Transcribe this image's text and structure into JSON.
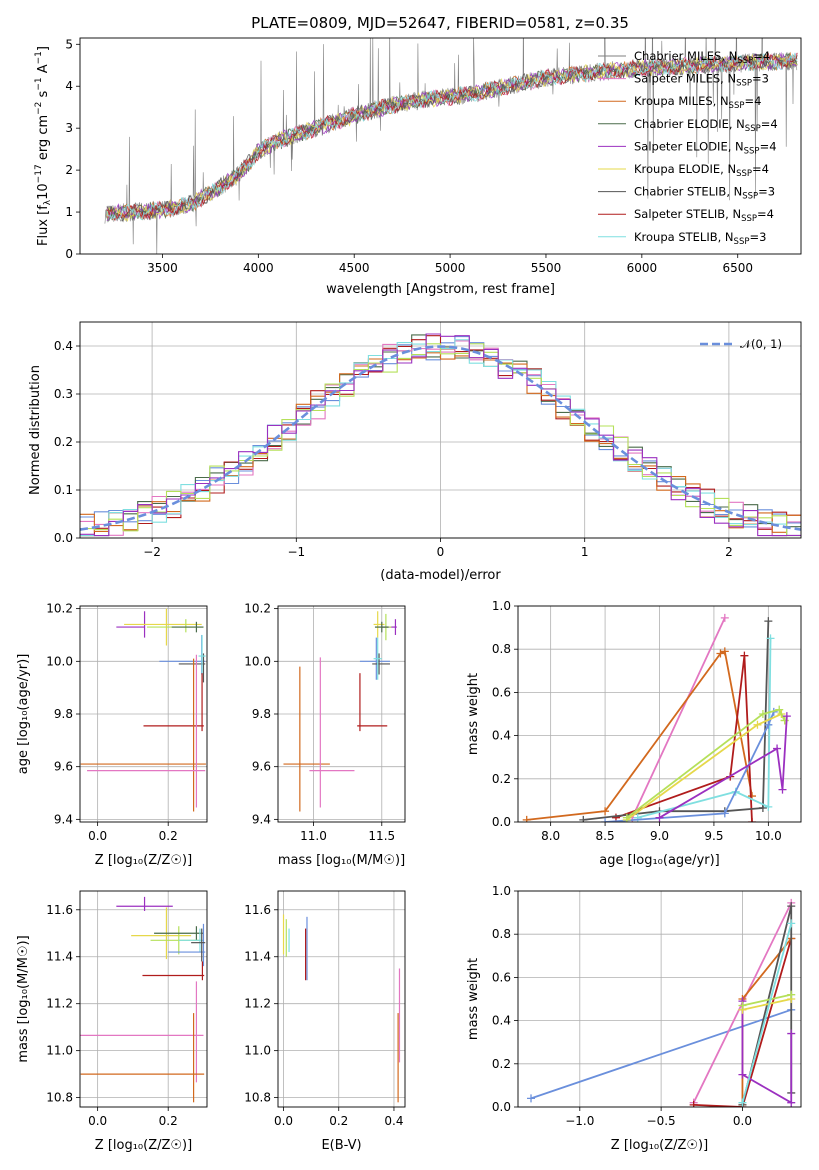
{
  "title": "PLATE=0809, MJD=52647, FIBERID=0581, z=0.35",
  "colors": {
    "chabrier_miles": "#7f7f7f",
    "salpeter_miles": "#e377c2",
    "kroupa_miles": "#d2691e",
    "chabrier_elodie": "#4a6b4a",
    "salpeter_elodie": "#9b30c0",
    "kroupa_elodie": "#e6d84a",
    "chabrier_stelib": "#555555",
    "salpeter_stelib": "#b01c1c",
    "kroupa_stelib": "#7fdfe0",
    "lightgreen": "#b5e05a",
    "blue": "#6a8fdc",
    "normal": "#6a8fdc",
    "grid": "#b0b0b0"
  },
  "panels": {
    "spectrum": {
      "xlabel": "wavelength [Angstrom, rest frame]",
      "ylabel": "Flux [f_λ 10^-17 erg cm^-2 s^-1 A^-1]",
      "xticks": [
        "3500",
        "4000",
        "4500",
        "5000",
        "5500",
        "6000",
        "6500"
      ],
      "yticks": [
        "0",
        "1",
        "2",
        "3",
        "4",
        "5"
      ]
    },
    "residuals": {
      "xlabel": "(data-model)/error",
      "ylabel": "Normed distribution",
      "xticks": [
        "−2",
        "−1",
        "0",
        "1",
        "2"
      ],
      "yticks": [
        "0.0",
        "0.1",
        "0.2",
        "0.3",
        "0.4"
      ],
      "legend": "𝒩(0, 1)"
    },
    "age_vs_z": {
      "xlabel": "Z [log₁₀(Z/Z☉)]",
      "ylabel": "age  [log₁₀(age/yr)]",
      "xticks": [
        "0.0",
        "0.2"
      ],
      "yticks": [
        "9.4",
        "9.6",
        "9.8",
        "10.0",
        "10.2"
      ]
    },
    "age_vs_mass": {
      "xlabel": "mass [log₁₀(M/M☉)]",
      "xticks": [
        "11.0",
        "11.5"
      ],
      "yticks": [
        "9.4",
        "9.6",
        "9.8",
        "10.0",
        "10.2"
      ]
    },
    "weight_vs_age": {
      "xlabel": "age  [log₁₀(age/yr)]",
      "ylabel": "mass weight",
      "xticks": [
        "8.0",
        "8.5",
        "9.0",
        "9.5",
        "10.0"
      ],
      "yticks": [
        "0.0",
        "0.2",
        "0.4",
        "0.6",
        "0.8",
        "1.0"
      ]
    },
    "mass_vs_z": {
      "xlabel": "Z [log₁₀(Z/Z☉)]",
      "ylabel": "mass [log₁₀(M/M☉)]",
      "xticks": [
        "0.0",
        "0.2"
      ],
      "yticks": [
        "10.8",
        "11.0",
        "11.2",
        "11.4",
        "11.6"
      ]
    },
    "mass_vs_ebv": {
      "xlabel": "E(B-V)",
      "xticks": [
        "0.0",
        "0.2",
        "0.4"
      ],
      "yticks": [
        "10.8",
        "11.0",
        "11.2",
        "11.4",
        "11.6"
      ]
    },
    "weight_vs_z": {
      "xlabel": "Z [log₁₀(Z/Z☉)]",
      "ylabel": "mass weight",
      "xticks": [
        "−1.0",
        "−0.5",
        "0.0"
      ],
      "yticks": [
        "0.0",
        "0.2",
        "0.4",
        "0.6",
        "0.8",
        "1.0"
      ]
    }
  },
  "chart_data": [
    {
      "type": "line",
      "panel": "spectrum",
      "title": "PLATE=0809, MJD=52647, FIBERID=0581, z=0.35",
      "xlabel": "wavelength [Angstrom, rest frame]",
      "ylabel": "Flux [f_λ 10^-17 erg cm^-2 s^-1 A^-1]",
      "xlim": [
        3070,
        6830
      ],
      "ylim": [
        0,
        5.15
      ],
      "legend_position": "right",
      "series": [
        {
          "name": "Chabrier MILES, N_SSP=4",
          "color": "#7f7f7f"
        },
        {
          "name": "Salpeter MILES, N_SSP=3",
          "color": "#e377c2"
        },
        {
          "name": "Kroupa MILES, N_SSP=4",
          "color": "#d2691e"
        },
        {
          "name": "Chabrier ELODIE, N_SSP=4",
          "color": "#4a6b4a"
        },
        {
          "name": "Salpeter ELODIE, N_SSP=4",
          "color": "#9b30c0"
        },
        {
          "name": "Kroupa ELODIE, N_SSP=4",
          "color": "#e6d84a"
        },
        {
          "name": "Chabrier STELIB, N_SSP=3",
          "color": "#555555"
        },
        {
          "name": "Salpeter STELIB, N_SSP=4",
          "color": "#b01c1c"
        },
        {
          "name": "Kroupa STELIB, N_SSP=3",
          "color": "#7fdfe0"
        }
      ],
      "continuum": {
        "x": [
          3200,
          3400,
          3500,
          3650,
          3750,
          3900,
          4000,
          4100,
          4300,
          4500,
          4700,
          4900,
          5100,
          5300,
          5500,
          5700,
          5900,
          6100,
          6300,
          6500,
          6800
        ],
        "y": [
          0.95,
          1.02,
          1.05,
          1.2,
          1.45,
          1.9,
          2.45,
          2.7,
          3.0,
          3.3,
          3.55,
          3.7,
          3.8,
          4.0,
          4.2,
          4.3,
          4.4,
          4.45,
          4.5,
          4.55,
          4.6
        ]
      }
    },
    {
      "type": "line",
      "panel": "residuals",
      "xlabel": "(data-model)/error",
      "ylabel": "Normed distribution",
      "xlim": [
        -2.5,
        2.5
      ],
      "ylim": [
        0,
        0.45
      ],
      "grid": true,
      "legend_position": "top-right",
      "normal_curve": {
        "name": "𝒩(0, 1)",
        "mu": 0,
        "sigma": 1
      },
      "histogram_step": 0.1
    },
    {
      "type": "scatter",
      "panel": "age_vs_z",
      "xlim": [
        -0.05,
        0.31
      ],
      "ylim": [
        9.39,
        10.21
      ],
      "points": [
        {
          "color": "#9b30c0",
          "x": 0.133,
          "y": 10.13,
          "xerr": [
            0.08,
            0.0
          ],
          "yerr": [
            0.04,
            0.06
          ]
        },
        {
          "color": "#e6d84a",
          "x": 0.195,
          "y": 10.14,
          "xerr": [
            0.12,
            0.1
          ],
          "yerr": [
            0.08,
            0.06
          ]
        },
        {
          "color": "#b5e05a",
          "x": 0.25,
          "y": 10.13,
          "xerr": [
            0.11,
            0.05
          ],
          "yerr": [
            0.02,
            0.03
          ]
        },
        {
          "color": "#4a6b4a",
          "x": 0.28,
          "y": 10.13,
          "xerr": [
            0.07,
            0.02
          ],
          "yerr": [
            0.02,
            0.02
          ]
        },
        {
          "color": "#6a8fdc",
          "x": 0.295,
          "y": 10.0,
          "xerr": [
            0.12,
            0.01
          ],
          "yerr": [
            0.05,
            0.1
          ]
        },
        {
          "color": "#555555",
          "x": 0.3,
          "y": 9.99,
          "xerr": [
            0.07,
            0.005
          ],
          "yerr": [
            0.07,
            0.04
          ]
        },
        {
          "color": "#7fdfe0",
          "x": 0.296,
          "y": 10.02,
          "xerr": [
            0.01,
            0.01
          ],
          "yerr": [
            0.08,
            0.08
          ]
        },
        {
          "color": "#b01c1c",
          "x": 0.296,
          "y": 9.755,
          "xerr": [
            0.166,
            0.005
          ],
          "yerr": [
            0.02,
            0.2
          ]
        },
        {
          "color": "#d2691e",
          "x": 0.272,
          "y": 9.61,
          "xerr": [
            0.32,
            0.035
          ],
          "yerr": [
            0.18,
            0.4
          ]
        },
        {
          "color": "#e377c2",
          "x": 0.28,
          "y": 9.585,
          "xerr": [
            0.31,
            0.025
          ],
          "yerr": [
            0.14,
            0.44
          ]
        }
      ]
    },
    {
      "type": "scatter",
      "panel": "age_vs_mass",
      "xlim": [
        10.74,
        11.67
      ],
      "ylim": [
        9.39,
        10.21
      ],
      "points": [
        {
          "color": "#9b30c0",
          "x": 11.6,
          "y": 10.13,
          "xerr": [
            0.1,
            0.01
          ],
          "yerr": [
            0.03,
            0.03
          ]
        },
        {
          "color": "#e6d84a",
          "x": 11.47,
          "y": 10.14,
          "xerr": [
            0.03,
            0.05
          ],
          "yerr": [
            0.05,
            0.05
          ]
        },
        {
          "color": "#b5e05a",
          "x": 11.53,
          "y": 10.13,
          "xerr": [
            0.08,
            0.04
          ],
          "yerr": [
            0.05,
            0.05
          ]
        },
        {
          "color": "#4a6b4a",
          "x": 11.5,
          "y": 10.13,
          "xerr": [
            0.05,
            0.05
          ],
          "yerr": [
            0.02,
            0.02
          ]
        },
        {
          "color": "#6a8fdc",
          "x": 11.46,
          "y": 10.0,
          "xerr": [
            0.12,
            0.1
          ],
          "yerr": [
            0.07,
            0.09
          ]
        },
        {
          "color": "#555555",
          "x": 11.48,
          "y": 9.99,
          "xerr": [
            0.05,
            0.08
          ],
          "yerr": [
            0.04,
            0.04
          ]
        },
        {
          "color": "#7fdfe0",
          "x": 11.47,
          "y": 10.01,
          "xerr": [
            0.03,
            0.03
          ],
          "yerr": [
            0.08,
            0.08
          ]
        },
        {
          "color": "#b01c1c",
          "x": 11.34,
          "y": 9.755,
          "xerr": [
            0.02,
            0.2
          ],
          "yerr": [
            0.02,
            0.2
          ]
        },
        {
          "color": "#d2691e",
          "x": 10.9,
          "y": 9.61,
          "xerr": [
            0.12,
            0.22
          ],
          "yerr": [
            0.18,
            0.37
          ]
        },
        {
          "color": "#e377c2",
          "x": 11.05,
          "y": 9.585,
          "xerr": [
            0.08,
            0.25
          ],
          "yerr": [
            0.14,
            0.43
          ]
        }
      ]
    },
    {
      "type": "line",
      "panel": "weight_vs_age",
      "xlim": [
        7.7,
        10.3
      ],
      "ylim": [
        0,
        1.0
      ],
      "grid": true,
      "series": [
        {
          "color": "#e377c2",
          "x": [
            8.75,
            9.6
          ],
          "y": [
            0.02,
            0.945
          ]
        },
        {
          "color": "#d2691e",
          "x": [
            7.78,
            8.5,
            9.56,
            9.6,
            9.85
          ],
          "y": [
            0.01,
            0.05,
            0.78,
            0.79,
            0.12
          ]
        },
        {
          "color": "#b01c1c",
          "x": [
            8.6,
            9.65,
            9.78,
            9.85
          ],
          "y": [
            0.02,
            0.21,
            0.77,
            0.0
          ]
        },
        {
          "color": "#555555",
          "x": [
            8.3,
            9.0,
            9.6,
            9.95,
            10.0
          ],
          "y": [
            0.01,
            0.05,
            0.05,
            0.065,
            0.93
          ]
        },
        {
          "color": "#7fdfe0",
          "x": [
            8.8,
            9.7,
            10.0,
            10.02
          ],
          "y": [
            0.02,
            0.14,
            0.07,
            0.85
          ]
        },
        {
          "color": "#6a8fdc",
          "x": [
            8.5,
            9.6,
            10.0,
            10.05
          ],
          "y": [
            0.0,
            0.04,
            0.45,
            0.51
          ]
        },
        {
          "color": "#e6d84a",
          "x": [
            8.7,
            9.9,
            10.12,
            10.15
          ],
          "y": [
            0.01,
            0.45,
            0.5,
            0.47
          ]
        },
        {
          "color": "#b5e05a",
          "x": [
            8.7,
            9.95,
            10.1,
            10.15
          ],
          "y": [
            0.02,
            0.5,
            0.52,
            0.47
          ]
        },
        {
          "color": "#9b30c0",
          "x": [
            9.0,
            10.08,
            10.13,
            10.17
          ],
          "y": [
            0.02,
            0.34,
            0.15,
            0.49
          ]
        }
      ]
    },
    {
      "type": "scatter",
      "panel": "mass_vs_z",
      "xlim": [
        -0.05,
        0.31
      ],
      "ylim": [
        10.76,
        11.68
      ],
      "points": [
        {
          "color": "#9b30c0",
          "x": 0.133,
          "y": 11.615,
          "xerr": [
            0.08,
            0.08
          ],
          "yerr": [
            0.02,
            0.04
          ]
        },
        {
          "color": "#e6d84a",
          "x": 0.195,
          "y": 11.49,
          "xerr": [
            0.1,
            0.07
          ],
          "yerr": [
            0.1,
            0.12
          ]
        },
        {
          "color": "#b5e05a",
          "x": 0.23,
          "y": 11.47,
          "xerr": [
            0.08,
            0.06
          ],
          "yerr": [
            0.06,
            0.06
          ]
        },
        {
          "color": "#4a6b4a",
          "x": 0.28,
          "y": 11.5,
          "xerr": [
            0.12,
            0.02
          ],
          "yerr": [
            0.03,
            0.03
          ]
        },
        {
          "color": "#7fdfe0",
          "x": 0.29,
          "y": 11.47,
          "xerr": [
            0.06,
            0.01
          ],
          "yerr": [
            0.05,
            0.05
          ]
        },
        {
          "color": "#6a8fdc",
          "x": 0.3,
          "y": 11.42,
          "xerr": [
            0.1,
            0.005
          ],
          "yerr": [
            0.06,
            0.12
          ]
        },
        {
          "color": "#555555",
          "x": 0.295,
          "y": 11.46,
          "xerr": [
            0.03,
            0.01
          ],
          "yerr": [
            0.08,
            0.06
          ]
        },
        {
          "color": "#b01c1c",
          "x": 0.297,
          "y": 11.32,
          "xerr": [
            0.17,
            0.005
          ],
          "yerr": [
            0.02,
            0.06
          ]
        },
        {
          "color": "#e377c2",
          "x": 0.28,
          "y": 11.065,
          "xerr": [
            0.33,
            0.02
          ],
          "yerr": [
            0.2,
            0.23
          ]
        },
        {
          "color": "#d2691e",
          "x": 0.272,
          "y": 10.9,
          "xerr": [
            0.32,
            0.03
          ],
          "yerr": [
            0.12,
            0.26
          ]
        }
      ]
    },
    {
      "type": "scatter",
      "panel": "mass_vs_ebv",
      "xlim": [
        -0.02,
        0.44
      ],
      "ylim": [
        10.76,
        11.68
      ],
      "points": [
        {
          "color": "#e6d84a",
          "x": 0.0,
          "y": 11.48,
          "xerr": [
            0.0,
            0.0
          ],
          "yerr": [
            0.07,
            0.1
          ]
        },
        {
          "color": "#b5e05a",
          "x": 0.01,
          "y": 11.46,
          "xerr": [
            0.0,
            0.0
          ],
          "yerr": [
            0.06,
            0.1
          ]
        },
        {
          "color": "#7fdfe0",
          "x": 0.02,
          "y": 11.47,
          "xerr": [
            0.0,
            0.0
          ],
          "yerr": [
            0.05,
            0.05
          ]
        },
        {
          "color": "#6a8fdc",
          "x": 0.085,
          "y": 11.42,
          "xerr": [
            0.0,
            0.0
          ],
          "yerr": [
            0.12,
            0.15
          ]
        },
        {
          "color": "#b01c1c",
          "x": 0.08,
          "y": 11.42,
          "xerr": [
            0.0,
            0.0
          ],
          "yerr": [
            0.12,
            0.1
          ]
        },
        {
          "color": "#e377c2",
          "x": 0.42,
          "y": 11.15,
          "xerr": [
            0.0,
            0.0
          ],
          "yerr": [
            0.2,
            0.2
          ]
        },
        {
          "color": "#d2691e",
          "x": 0.415,
          "y": 11.0,
          "xerr": [
            0.0,
            0.0
          ],
          "yerr": [
            0.22,
            0.16
          ]
        }
      ]
    },
    {
      "type": "line",
      "panel": "weight_vs_z",
      "xlim": [
        -1.38,
        0.36
      ],
      "ylim": [
        0,
        1.0
      ],
      "grid": true,
      "series": [
        {
          "color": "#6a8fdc",
          "x": [
            -1.3,
            0.3
          ],
          "y": [
            0.04,
            0.45
          ]
        },
        {
          "color": "#e377c2",
          "x": [
            -0.3,
            0.3
          ],
          "y": [
            0.02,
            0.945
          ]
        },
        {
          "color": "#b01c1c",
          "x": [
            -0.3,
            0.0,
            0.3
          ],
          "y": [
            0.01,
            0.0,
            0.78
          ]
        },
        {
          "color": "#d2691e",
          "x": [
            0.0,
            0.0,
            0.3
          ],
          "y": [
            0.01,
            0.5,
            0.78
          ]
        },
        {
          "color": "#555555",
          "x": [
            0.0,
            0.3,
            0.3
          ],
          "y": [
            0.01,
            0.93,
            0.065
          ]
        },
        {
          "color": "#9b30c0",
          "x": [
            0.0,
            0.0,
            0.3,
            0.3
          ],
          "y": [
            0.49,
            0.15,
            0.02,
            0.34
          ]
        },
        {
          "color": "#e6d84a",
          "x": [
            0.0,
            0.3
          ],
          "y": [
            0.45,
            0.5
          ]
        },
        {
          "color": "#b5e05a",
          "x": [
            0.0,
            0.3
          ],
          "y": [
            0.47,
            0.52
          ]
        },
        {
          "color": "#7fdfe0",
          "x": [
            0.0,
            0.3
          ],
          "y": [
            0.02,
            0.85
          ]
        }
      ]
    }
  ]
}
